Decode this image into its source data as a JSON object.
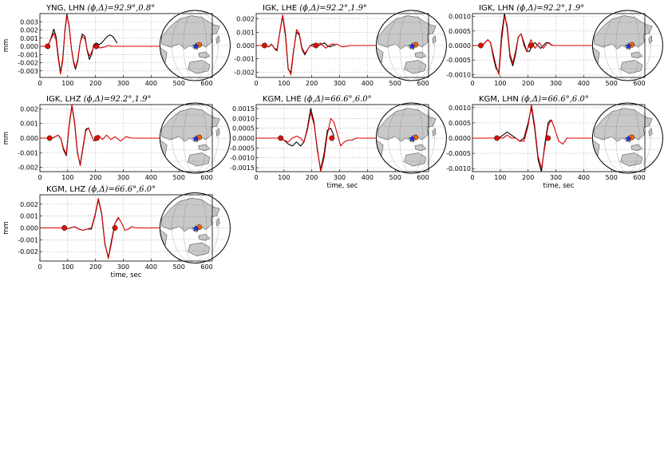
{
  "figure": {
    "background": "#ffffff",
    "observed_color": "#000000",
    "synthetic_color": "#dd0000",
    "marker_color": "#dd1100",
    "station_marker_color": "#1a33ff",
    "event_marker_color": "#ff6600",
    "land_color": "#c8c8c8"
  },
  "chart_data": [
    {
      "type": "line",
      "title": "YNG, LHN",
      "title_math": "(ϕ,Δ)=92.9°,0.8°",
      "xlabel": "",
      "ylabel": "mm",
      "xlim": [
        0,
        620
      ],
      "ylim": [
        -0.0038,
        0.004
      ],
      "xticks": [
        "0",
        "100",
        "200",
        "300",
        "400",
        "500",
        "600"
      ],
      "yticks": [
        "-0.003",
        "-0.002",
        "-0.001",
        "0.000",
        "0.001",
        "0.002",
        "0.003"
      ],
      "grid": true,
      "series": [
        {
          "name": "observed",
          "x": [
            0,
            25,
            32,
            40,
            50,
            58,
            66,
            74,
            82,
            90,
            97,
            105,
            113,
            121,
            128,
            136,
            144,
            152,
            162,
            170,
            178,
            186,
            194,
            202,
            212,
            222,
            232,
            242,
            252,
            262,
            270,
            278
          ],
          "y": [
            0,
            0,
            0.0003,
            0.001,
            0.0021,
            0.0012,
            -0.0012,
            -0.0032,
            -0.0015,
            0.002,
            0.0039,
            0.0025,
            -0.0002,
            -0.002,
            -0.0028,
            -0.0018,
            0.0003,
            0.0015,
            0.0012,
            -0.0005,
            -0.0016,
            -0.001,
            0.0002,
            0.0004,
            0.0002,
            0.0004,
            0.0008,
            0.0012,
            0.0014,
            0.0012,
            0.0008,
            0.0004
          ]
        },
        {
          "name": "synthetic",
          "x": [
            0,
            25,
            32,
            40,
            50,
            58,
            66,
            74,
            82,
            90,
            97,
            105,
            113,
            121,
            128,
            136,
            144,
            152,
            162,
            170,
            178,
            186,
            194,
            202,
            215,
            230,
            245,
            260,
            280,
            300,
            330,
            360,
            400,
            430
          ],
          "y": [
            0,
            0,
            0.0003,
            0.0009,
            0.0016,
            0.0008,
            -0.0015,
            -0.0034,
            -0.0018,
            0.0018,
            0.0037,
            0.0026,
            -0.0002,
            -0.0018,
            -0.0026,
            -0.0016,
            0.0003,
            0.0012,
            0.0009,
            -0.0004,
            -0.0012,
            -0.0007,
            0.0,
            0.0003,
            -0.0002,
            -0.0001,
            0.0001,
            0,
            0,
            0,
            0,
            0,
            0,
            0
          ]
        }
      ],
      "markers": {
        "x": [
          28,
          203
        ],
        "y": [
          0,
          0
        ]
      },
      "map_event": [
        0.78,
        0.52
      ]
    },
    {
      "type": "line",
      "title": "IGK, LHE",
      "title_math": "(ϕ,Δ)=92.2°,1.9°",
      "xlabel": "",
      "ylabel": "",
      "xlim": [
        0,
        620
      ],
      "ylim": [
        -0.0024,
        0.0024
      ],
      "xticks": [
        "0",
        "100",
        "200",
        "300",
        "400",
        "500",
        "600"
      ],
      "yticks": [
        "-0.002",
        "-0.001",
        "0.000",
        "0.001",
        "0.002"
      ],
      "grid": true,
      "series": [
        {
          "name": "observed",
          "x": [
            0,
            30,
            45,
            55,
            65,
            75,
            85,
            95,
            105,
            115,
            125,
            135,
            145,
            155,
            165,
            175,
            185,
            195,
            205,
            215,
            225,
            235,
            245,
            255,
            265,
            275,
            285
          ],
          "y": [
            0,
            0,
            -0.0001,
            0.0001,
            -0.0002,
            -0.0004,
            0.001,
            0.0022,
            0.0008,
            -0.0018,
            -0.002,
            -0.0003,
            0.001,
            0.0008,
            -0.0003,
            -0.0007,
            -0.0003,
            0.0,
            0.0001,
            0.0001,
            0.0,
            0.0001,
            0.0002,
            0.0,
            -0.0001,
            0.0,
            0.0
          ]
        },
        {
          "name": "synthetic",
          "x": [
            0,
            30,
            45,
            55,
            65,
            75,
            85,
            95,
            105,
            115,
            125,
            135,
            145,
            155,
            165,
            175,
            185,
            195,
            210,
            230,
            250,
            270,
            290,
            310,
            340,
            370,
            400,
            430
          ],
          "y": [
            0,
            0,
            -0.0001,
            0.0001,
            -0.0002,
            -0.0003,
            0.001,
            0.0023,
            0.001,
            -0.0017,
            -0.0022,
            -0.0004,
            0.0012,
            0.0009,
            -0.0002,
            -0.0006,
            -0.0003,
            0.0,
            -0.0001,
            0.0002,
            -0.0002,
            0.0001,
            0.0001,
            -0.0001,
            0,
            0,
            0,
            0
          ]
        }
      ],
      "markers": {
        "x": [
          30,
          215
        ],
        "y": [
          0,
          0
        ]
      },
      "map_event": [
        0.77,
        0.5
      ]
    },
    {
      "type": "line",
      "title": "IGK, LHN",
      "title_math": "(ϕ,Δ)=92.2°,1.9°",
      "xlabel": "",
      "ylabel": "",
      "xlim": [
        0,
        620
      ],
      "ylim": [
        -0.0011,
        0.0011
      ],
      "xticks": [
        "0",
        "100",
        "200",
        "300",
        "400",
        "500",
        "600"
      ],
      "yticks": [
        "-0.0010",
        "-0.0005",
        "0.0000",
        "0.0005",
        "0.0010"
      ],
      "grid": true,
      "series": [
        {
          "name": "observed",
          "x": [
            0,
            25,
            35,
            45,
            55,
            65,
            75,
            85,
            95,
            105,
            115,
            125,
            135,
            145,
            155,
            165,
            175,
            185,
            195,
            205,
            215,
            225,
            235,
            245,
            255,
            265,
            275,
            285
          ],
          "y": [
            0,
            0,
            0.0,
            0.0001,
            0.0002,
            0.0001,
            -0.0004,
            -0.0008,
            -0.0009,
            0.0004,
            0.0011,
            0.0006,
            -0.0004,
            -0.0007,
            -0.0003,
            0.0003,
            0.0004,
            0.0001,
            -0.0002,
            -0.0002,
            0.0,
            0.0001,
            0.0,
            -0.0001,
            0.0,
            0.0001,
            0.0001,
            0.0
          ]
        },
        {
          "name": "synthetic",
          "x": [
            0,
            25,
            35,
            45,
            55,
            65,
            75,
            85,
            95,
            105,
            115,
            125,
            135,
            145,
            155,
            165,
            175,
            185,
            195,
            210,
            225,
            240,
            255,
            270,
            290,
            310,
            340,
            370,
            400,
            430
          ],
          "y": [
            0,
            0,
            0.0,
            0.0001,
            0.0002,
            0.0001,
            -0.0003,
            -0.0007,
            -0.001,
            0.0002,
            0.001,
            0.0007,
            -0.0003,
            -0.0006,
            -0.0002,
            0.0003,
            0.0004,
            0.0,
            -0.0002,
            0.0002,
            -0.0001,
            0.0001,
            -0.0001,
            0.0001,
            0.0,
            0,
            0,
            0,
            0,
            0
          ]
        }
      ],
      "markers": {
        "x": [
          30,
          210
        ],
        "y": [
          0,
          0
        ]
      },
      "map_event": [
        0.77,
        0.5
      ]
    },
    {
      "type": "line",
      "title": "IGK, LHZ",
      "title_math": "(ϕ,Δ)=92.2°,1.9°",
      "xlabel": "",
      "ylabel": "mm",
      "xlim": [
        0,
        620
      ],
      "ylim": [
        -0.0023,
        0.0023
      ],
      "xticks": [
        "0",
        "100",
        "200",
        "300",
        "400",
        "500",
        "600"
      ],
      "yticks": [
        "-0.002",
        "-0.001",
        "0.000",
        "0.001",
        "0.002"
      ],
      "grid": true,
      "series": [
        {
          "name": "observed",
          "x": [
            0,
            35,
            45,
            55,
            65,
            75,
            85,
            95,
            105,
            115,
            125,
            135,
            145,
            155,
            165,
            175,
            185,
            195,
            205,
            215
          ],
          "y": [
            0,
            0,
            0.0,
            0.0001,
            0.0002,
            0.0,
            -0.0008,
            -0.0012,
            0.0008,
            0.0022,
            0.001,
            -0.001,
            -0.0018,
            -0.0006,
            0.0006,
            0.0007,
            0.0002,
            -0.0002,
            -0.0001,
            0.0
          ]
        },
        {
          "name": "synthetic",
          "x": [
            0,
            35,
            45,
            55,
            65,
            75,
            85,
            95,
            105,
            115,
            125,
            135,
            145,
            155,
            165,
            175,
            185,
            195,
            210,
            225,
            240,
            255,
            270,
            290,
            310,
            330,
            360,
            390,
            420,
            440
          ],
          "y": [
            0,
            0,
            0.0,
            0.0001,
            0.0002,
            0.0,
            -0.0007,
            -0.0011,
            0.0009,
            0.0023,
            0.0011,
            -0.0009,
            -0.0019,
            -0.0007,
            0.0005,
            0.0007,
            0.0002,
            -0.0002,
            0.0002,
            -0.0001,
            0.0002,
            -0.0001,
            0.0001,
            -0.0002,
            0.0001,
            0.0,
            0,
            0,
            0,
            0
          ]
        }
      ],
      "markers": {
        "x": [
          35,
          205
        ],
        "y": [
          0,
          0
        ]
      },
      "map_event": [
        0.77,
        0.5
      ]
    },
    {
      "type": "line",
      "title": "KGM, LHE",
      "title_math": "(ϕ,Δ)=66.6°,6.0°",
      "xlabel": "time, sec",
      "ylabel": "",
      "xlim": [
        0,
        620
      ],
      "ylim": [
        -0.0017,
        0.0017
      ],
      "xticks": [
        "0",
        "100",
        "200",
        "300",
        "400",
        "500",
        "600"
      ],
      "yticks": [
        "-0.0015",
        "-0.0010",
        "-0.0005",
        "0.0000",
        "0.0005",
        "0.0010",
        "0.0015"
      ],
      "grid": true,
      "series": [
        {
          "name": "observed",
          "x": [
            0,
            80,
            100,
            115,
            130,
            145,
            160,
            172,
            184,
            196,
            208,
            220,
            232,
            244,
            256,
            268,
            280
          ],
          "y": [
            0,
            0,
            -0.0001,
            -0.0003,
            -0.0004,
            -0.0002,
            -0.0004,
            -0.0002,
            0.0005,
            0.0015,
            0.0008,
            -0.0006,
            -0.0016,
            -0.0008,
            0.0004,
            0.0005,
            0.0001
          ]
        },
        {
          "name": "synthetic",
          "x": [
            0,
            80,
            100,
            115,
            130,
            145,
            160,
            172,
            184,
            196,
            208,
            220,
            232,
            244,
            256,
            268,
            280,
            292,
            304,
            316,
            330,
            345,
            360,
            380,
            400,
            430
          ],
          "y": [
            0,
            0,
            -0.0001,
            -0.0002,
            0.0,
            0.0001,
            0.0,
            -0.0002,
            0.0004,
            0.0013,
            0.0007,
            -0.0005,
            -0.0017,
            -0.001,
            0.0002,
            0.001,
            0.0008,
            0.0002,
            -0.0004,
            -0.0002,
            -0.0001,
            -0.0001,
            0.0,
            0.0,
            0,
            0
          ]
        }
      ],
      "markers": {
        "x": [
          88,
          272
        ],
        "y": [
          0,
          0
        ]
      },
      "map_event": [
        0.82,
        0.45
      ]
    },
    {
      "type": "line",
      "title": "KGM, LHN",
      "title_math": "(ϕ,Δ)=66.6°,6.0°",
      "xlabel": "time, sec",
      "ylabel": "",
      "xlim": [
        0,
        620
      ],
      "ylim": [
        -0.0011,
        0.0011
      ],
      "xticks": [
        "0",
        "100",
        "200",
        "300",
        "400",
        "500",
        "600"
      ],
      "yticks": [
        "-0.0010",
        "-0.0005",
        "0.0000",
        "0.0005",
        "0.0010"
      ],
      "grid": true,
      "series": [
        {
          "name": "observed",
          "x": [
            0,
            80,
            95,
            110,
            125,
            140,
            155,
            170,
            185,
            200,
            212,
            224,
            236,
            248,
            260,
            272,
            282
          ],
          "y": [
            0,
            0,
            0.0,
            0.0001,
            0.0002,
            0.0001,
            0.0,
            -0.0001,
            0.0,
            0.0005,
            0.001,
            0.0003,
            -0.0007,
            -0.0011,
            -0.0002,
            0.0005,
            0.0006
          ]
        },
        {
          "name": "synthetic",
          "x": [
            0,
            80,
            95,
            110,
            125,
            140,
            155,
            170,
            185,
            200,
            212,
            224,
            236,
            248,
            260,
            272,
            284,
            296,
            310,
            325,
            340,
            360,
            380,
            400,
            430
          ],
          "y": [
            0,
            0,
            0.0,
            0.0,
            0.0001,
            0.0,
            0.0,
            -0.0001,
            -0.0001,
            0.0004,
            0.0011,
            0.0004,
            -0.0006,
            -0.001,
            -0.0003,
            0.0004,
            0.0006,
            0.0003,
            -0.0001,
            -0.0002,
            0.0,
            0.0,
            0,
            0,
            0
          ]
        }
      ],
      "markers": {
        "x": [
          88,
          272
        ],
        "y": [
          0,
          0
        ]
      },
      "map_event": [
        0.82,
        0.45
      ]
    },
    {
      "type": "line",
      "title": "KGM, LHZ",
      "title_math": "(ϕ,Δ)=66.6°,6.0°",
      "xlabel": "time, sec",
      "ylabel": "mm",
      "xlim": [
        0,
        620
      ],
      "ylim": [
        -0.0028,
        0.0028
      ],
      "xticks": [
        "0",
        "100",
        "200",
        "300",
        "400",
        "500",
        "600"
      ],
      "yticks": [
        "-0.002",
        "-0.001",
        "0.000",
        "0.001",
        "0.002"
      ],
      "grid": true,
      "series": [
        {
          "name": "observed",
          "x": [
            0,
            80,
            95,
            110,
            125,
            140,
            155,
            170,
            185,
            198,
            210,
            222,
            234,
            246,
            258,
            270,
            282
          ],
          "y": [
            0,
            0,
            -0.0001,
            0.0,
            0.0001,
            -0.0001,
            -0.0002,
            -0.0001,
            -0.0001,
            0.001,
            0.0024,
            0.0012,
            -0.0014,
            -0.0025,
            -0.001,
            0.0004,
            0.0008
          ]
        },
        {
          "name": "synthetic",
          "x": [
            0,
            80,
            95,
            110,
            125,
            140,
            155,
            170,
            185,
            198,
            210,
            222,
            234,
            246,
            258,
            270,
            282,
            294,
            306,
            318,
            330,
            345,
            360,
            380,
            400,
            430
          ],
          "y": [
            0,
            0,
            -0.0001,
            0.0,
            0.0001,
            -0.0001,
            -0.0002,
            -0.0001,
            0.0,
            0.0011,
            0.0025,
            0.0013,
            -0.0013,
            -0.0026,
            -0.0012,
            0.0004,
            0.0009,
            0.0004,
            -0.0002,
            -0.0001,
            0.0001,
            0.0,
            0.0,
            0,
            0,
            0
          ]
        }
      ],
      "markers": {
        "x": [
          88,
          270
        ],
        "y": [
          0,
          0
        ]
      },
      "map_event": [
        0.82,
        0.45
      ]
    }
  ]
}
